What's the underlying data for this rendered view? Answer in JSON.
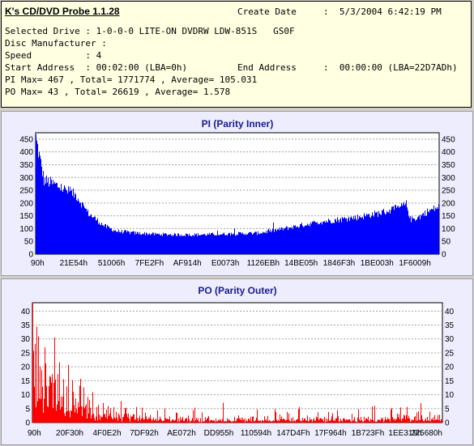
{
  "info": {
    "app_title": "K's CD/DVD Probe 1.1.28",
    "create_date_label": "Create Date",
    "create_date_value": ":  5/3/2004 6:42:19 PM",
    "selected_drive": "Selected Drive : 1-0-0-0 LITE-ON DVDRW LDW-851S   GS0F",
    "disc_manufacturer": "Disc Manufacturer :",
    "speed": "Speed          : 4",
    "start_address": "Start Address  : 00:02:00 (LBA=0h)",
    "end_address_label": "End Address",
    "end_address_value": ":  00:00:00 (LBA=22D7ADh)",
    "pi_stats": "PI Max= 467 , Total= 1771774 , Average= 105.031",
    "po_stats": "PO Max= 43 , Total= 26619 , Average= 1.578"
  },
  "colors": {
    "bar": "#0000ff",
    "po_bar": "#ff0000",
    "panel_bg": "#ededfe",
    "info_bg": "#ffffe1",
    "title": "#1a1a90"
  },
  "chart_data": [
    {
      "type": "bar",
      "title": "PI (Parity Inner)",
      "xlabel": "",
      "ylabel": "",
      "ylim": [
        0,
        475
      ],
      "yticks": [
        0,
        50,
        100,
        150,
        200,
        250,
        300,
        350,
        400,
        450
      ],
      "grid": true,
      "y_axis_both_sides": true,
      "tick_labels": [
        "90h",
        "21E54h",
        "51006h",
        "7FE2Fh",
        "AF914h",
        "E0073h",
        "1126EBh",
        "14BE05h",
        "1846F3h",
        "1BE003h",
        "1F6009h"
      ],
      "profile_x": [
        0,
        0.02,
        0.05,
        0.1,
        0.13,
        0.17,
        0.2,
        0.25,
        0.3,
        0.35,
        0.4,
        0.45,
        0.5,
        0.55,
        0.6,
        0.65,
        0.7,
        0.75,
        0.8,
        0.85,
        0.9,
        0.92,
        0.93,
        0.95,
        0.97,
        1.0
      ],
      "profile_y": [
        450,
        290,
        270,
        230,
        160,
        110,
        90,
        82,
        78,
        76,
        76,
        78,
        80,
        82,
        95,
        110,
        125,
        135,
        145,
        160,
        180,
        195,
        135,
        145,
        165,
        185
      ],
      "max": 467
    },
    {
      "type": "bar",
      "title": "PO (Parity Outer)",
      "xlabel": "",
      "ylabel": "",
      "ylim": [
        0,
        43
      ],
      "yticks": [
        0,
        5,
        10,
        15,
        20,
        25,
        30,
        35,
        40
      ],
      "grid": true,
      "y_axis_both_sides": true,
      "tick_labels": [
        "90h",
        "20F30h",
        "4F0E2h",
        "7DF92h",
        "AE072h",
        "DD955h",
        "110594h",
        "147D4Fh",
        "17F964h",
        "1B723Fh",
        "1EE319h",
        "225680h"
      ],
      "profile_x": [
        0,
        0.01,
        0.03,
        0.06,
        0.1,
        0.15,
        0.2,
        0.3,
        0.5,
        0.7,
        0.9,
        1.0
      ],
      "profile_y": [
        42,
        25,
        18,
        13,
        9,
        5,
        2.5,
        1.5,
        1.2,
        1.2,
        1.5,
        1.5
      ],
      "max": 43
    }
  ]
}
